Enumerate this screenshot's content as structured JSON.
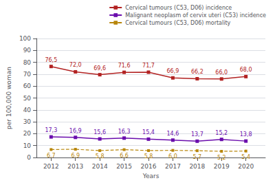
{
  "chart_data": {
    "type": "line",
    "x": [
      2012,
      2013,
      2014,
      2015,
      2016,
      2017,
      2018,
      2019,
      2020
    ],
    "series": [
      {
        "name": "Cervical tumours (C53, D06) incidence",
        "color": "#B22222",
        "values": [
          76.5,
          72.0,
          69.6,
          71.6,
          71.7,
          66.9,
          66.2,
          66.0,
          68.0
        ],
        "value_labels": [
          "76,5",
          "72,0",
          "69,6",
          "71,6",
          "71,7",
          "66,9",
          "66,2",
          "66,0",
          "68,0"
        ],
        "marker": "square",
        "line_style": "solid"
      },
      {
        "name": "Malignant neoplasm of cervix uteri (C53) incidence",
        "color": "#6A0DAD",
        "values": [
          17.3,
          16.9,
          15.6,
          16.3,
          15.4,
          14.6,
          13.7,
          15.2,
          13.8
        ],
        "value_labels": [
          "17,3",
          "16,9",
          "15,6",
          "16,3",
          "15,4",
          "14,6",
          "13,7",
          "15,2",
          "13,8"
        ],
        "marker": "square",
        "line_style": "solid"
      },
      {
        "name": "Cervical tumours (C53, D06) mortality",
        "color": "#B8860B",
        "values": [
          6.7,
          6.9,
          5.8,
          6.6,
          5.8,
          6.0,
          5.7,
          5.2,
          5.4
        ],
        "value_labels": [
          "6,7",
          "6,9",
          "5,8",
          "6,6",
          "5,8",
          "6,0",
          "5,7",
          "5,2",
          "5,4"
        ],
        "marker": "square",
        "line_style": "dashed"
      }
    ],
    "xlabel": "Years",
    "ylabel": "per 100,000 woman",
    "xlim": [
      2011.4,
      2020.8
    ],
    "xticks": [
      2012,
      2013,
      2014,
      2015,
      2016,
      2017,
      2018,
      2019,
      2020
    ],
    "ylim": [
      0,
      100
    ],
    "yticks": [
      0,
      10,
      20,
      30,
      40,
      50,
      60,
      70,
      80,
      90,
      100
    ],
    "grid": true,
    "legend": "upper right",
    "data_labels": true
  }
}
